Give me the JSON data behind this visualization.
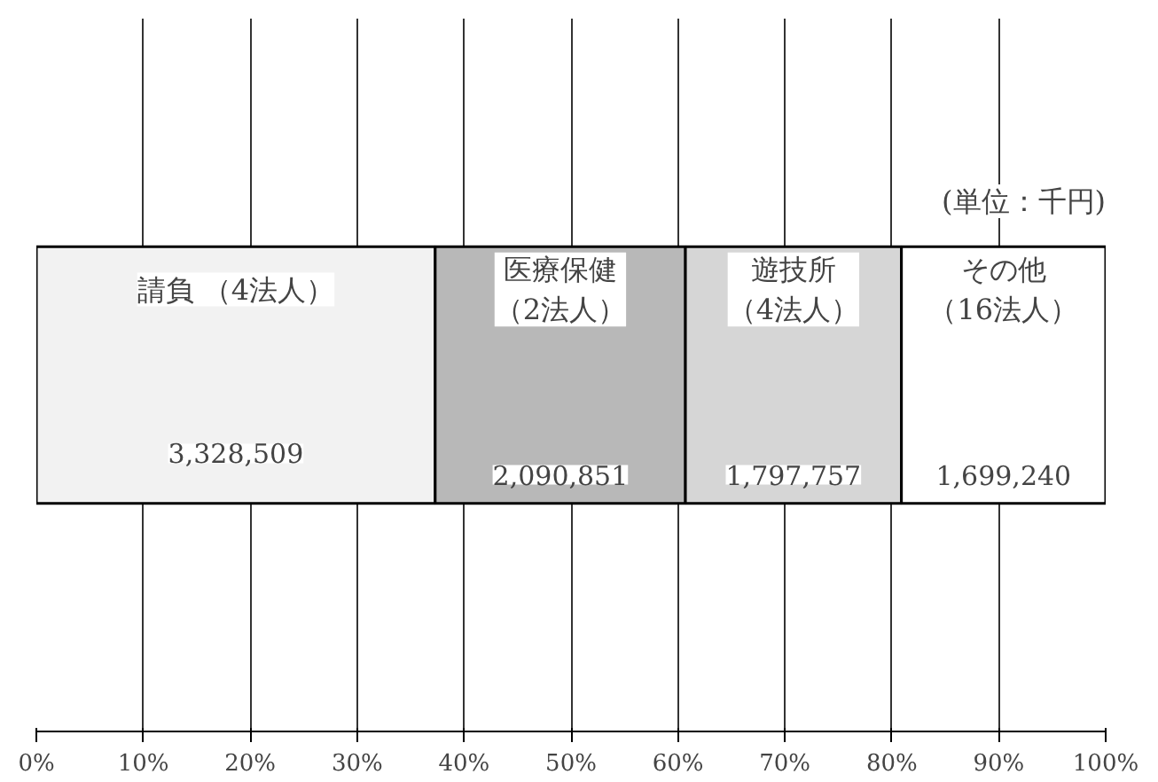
{
  "chart_data": {
    "type": "bar",
    "orientation": "horizontal",
    "stacked": true,
    "categories": [
      null
    ],
    "series": [
      {
        "name": "請負 （4法人）",
        "color": "#f2f2f2",
        "values": [
          37.3
        ]
      },
      {
        "name": "医療保健（2法人）",
        "color": "#b8b8b8",
        "values": [
          23.4
        ]
      },
      {
        "name": "遊技所（4法人）",
        "color": "#d6d6d6",
        "values": [
          20.2
        ]
      },
      {
        "name": "その他（16法人）",
        "color": "#ffffff",
        "values": [
          19.1
        ]
      }
    ],
    "xlim": [
      0,
      100
    ],
    "xticks": [
      {
        "value": 0,
        "label": "0%"
      },
      {
        "value": 10,
        "label": "10%"
      },
      {
        "value": 20,
        "label": "20%"
      },
      {
        "value": 30,
        "label": "30%"
      },
      {
        "value": 40,
        "label": "40%"
      },
      {
        "value": 50,
        "label": "50%"
      },
      {
        "value": 60,
        "label": "60%"
      },
      {
        "value": 70,
        "label": "70%"
      },
      {
        "value": 80,
        "label": "80%"
      },
      {
        "value": 90,
        "label": "90%"
      },
      {
        "value": 100,
        "label": "100%"
      }
    ],
    "grid": "x",
    "tick_labels": "x",
    "legend": false,
    "annotations": [
      "(単位：千円)",
      "3,328,509",
      "2,090,851",
      "1,797,757",
      "1,699,240"
    ]
  }
}
